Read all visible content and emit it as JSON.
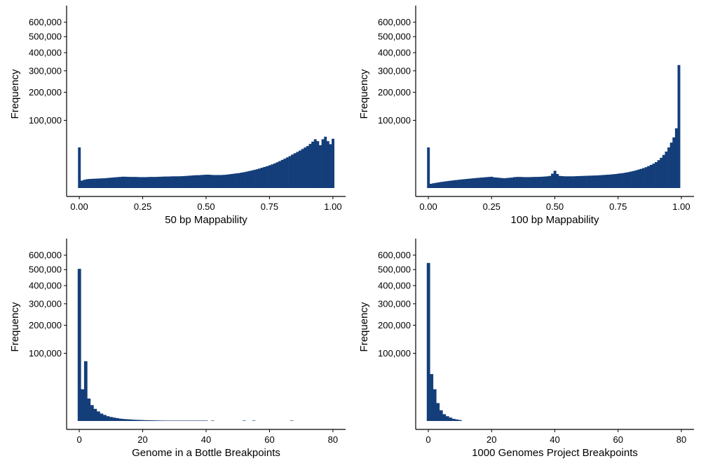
{
  "style": {
    "bar_color": "#143e7a",
    "axis_color": "#000000",
    "background": "#ffffff"
  },
  "chart_data": [
    {
      "type": "bar",
      "title": "",
      "xlabel": "50 bp Mappability",
      "ylabel": "Frequency",
      "y_scale": "sqrt",
      "ylim": [
        0,
        650000
      ],
      "yticks": [
        100000,
        200000,
        300000,
        400000,
        500000,
        600000
      ],
      "ytick_labels": [
        "100,000",
        "200,000",
        "300,000",
        "400,000",
        "500,000",
        "600,000"
      ],
      "xlim": [
        -0.05,
        1.05
      ],
      "xticks": [
        0,
        0.25,
        0.5,
        0.75,
        1
      ],
      "xtick_labels": [
        "0.00",
        "0.25",
        "0.50",
        "0.75",
        "1.00"
      ],
      "bin_start": -0.005,
      "bin_width": 0.01,
      "values": [
        36000,
        1200,
        1500,
        1700,
        1800,
        1850,
        1900,
        1950,
        2000,
        2050,
        2100,
        2200,
        2300,
        2400,
        2500,
        2600,
        2700,
        2800,
        2800,
        2750,
        2700,
        2700,
        2700,
        2650,
        2600,
        2600,
        2600,
        2650,
        2700,
        2700,
        2700,
        2750,
        2800,
        2850,
        2900,
        2900,
        2950,
        3000,
        3000,
        3000,
        3050,
        3100,
        3200,
        3300,
        3400,
        3500,
        3600,
        3600,
        3700,
        3800,
        3900,
        3900,
        3800,
        3700,
        3700,
        3700,
        3700,
        3800,
        3900,
        4100,
        4300,
        4500,
        4700,
        4900,
        5200,
        5500,
        5900,
        6300,
        6700,
        7200,
        7700,
        8300,
        9000,
        9700,
        10400,
        11300,
        12200,
        13200,
        14500,
        15800,
        17300,
        18800,
        20500,
        22300,
        24500,
        26500,
        28500,
        30700,
        33300,
        36000,
        38500,
        42500,
        47000,
        52000,
        48000,
        40000,
        52000,
        57500,
        48000,
        42000,
        53000
      ]
    },
    {
      "type": "bar",
      "title": "",
      "xlabel": "100 bp Mappability",
      "ylabel": "Frequency",
      "y_scale": "sqrt",
      "ylim": [
        0,
        650000
      ],
      "yticks": [
        100000,
        200000,
        300000,
        400000,
        500000,
        600000
      ],
      "ytick_labels": [
        "100,000",
        "200,000",
        "300,000",
        "400,000",
        "500,000",
        "600,000"
      ],
      "xlim": [
        -0.05,
        1.05
      ],
      "xticks": [
        0,
        0.25,
        0.5,
        0.75,
        1
      ],
      "xtick_labels": [
        "0.00",
        "0.25",
        "0.50",
        "0.75",
        "1.00"
      ],
      "bin_start": -0.005,
      "bin_width": 0.01,
      "values": [
        36000,
        400,
        500,
        600,
        700,
        800,
        900,
        1000,
        1100,
        1200,
        1300,
        1400,
        1500,
        1600,
        1700,
        1800,
        1900,
        2000,
        2100,
        2200,
        2300,
        2400,
        2500,
        2600,
        2700,
        2800,
        2500,
        2400,
        2300,
        2200,
        2100,
        2200,
        2300,
        2400,
        2600,
        2700,
        2700,
        2650,
        2600,
        2600,
        2600,
        2650,
        2700,
        2700,
        2750,
        2800,
        2900,
        3000,
        3200,
        4500,
        6500,
        4300,
        3200,
        3100,
        3000,
        3000,
        3000,
        3000,
        3050,
        3100,
        3150,
        3200,
        3250,
        3300,
        3350,
        3400,
        3450,
        3500,
        3600,
        3700,
        3800,
        3900,
        4000,
        4150,
        4300,
        4500,
        4700,
        4900,
        5200,
        5500,
        5900,
        6300,
        6800,
        7400,
        8000,
        8700,
        9500,
        10500,
        11700,
        13000,
        14700,
        17000,
        20000,
        24000,
        29000,
        36000,
        45000,
        56000,
        78000,
        330000
      ]
    },
    {
      "type": "bar",
      "title": "",
      "xlabel": "Genome in a Bottle Breakpoints",
      "ylabel": "Frequency",
      "y_scale": "sqrt",
      "ylim": [
        0,
        650000
      ],
      "yticks": [
        100000,
        200000,
        300000,
        400000,
        500000,
        600000
      ],
      "ytick_labels": [
        "100,000",
        "200,000",
        "300,000",
        "400,000",
        "500,000",
        "600,000"
      ],
      "xlim": [
        -4,
        84
      ],
      "xticks": [
        0,
        20,
        40,
        60,
        80
      ],
      "xtick_labels": [
        "0",
        "20",
        "40",
        "60",
        "80"
      ],
      "bin_start": -0.5,
      "bin_width": 1,
      "values": [
        505000,
        22000,
        78000,
        11000,
        5500,
        3200,
        2000,
        1200,
        800,
        500,
        350,
        250,
        180,
        120,
        90,
        70,
        55,
        40,
        30,
        25,
        20,
        15,
        12,
        10,
        8,
        6,
        5,
        4,
        3,
        3,
        2,
        2,
        2,
        1,
        1,
        1,
        1,
        1,
        1,
        1,
        1,
        0,
        1,
        0,
        0,
        0,
        0,
        0,
        0,
        0,
        0,
        0,
        1,
        0,
        0,
        1,
        0,
        0,
        0,
        0,
        0,
        0,
        0,
        0,
        0,
        0,
        0,
        1
      ]
    },
    {
      "type": "bar",
      "title": "",
      "xlabel": "1000 Genomes Project Breakpoints",
      "ylabel": "Frequency",
      "y_scale": "sqrt",
      "ylim": [
        0,
        650000
      ],
      "yticks": [
        100000,
        200000,
        300000,
        400000,
        500000,
        600000
      ],
      "ytick_labels": [
        "100,000",
        "200,000",
        "300,000",
        "400,000",
        "500,000",
        "600,000"
      ],
      "xlim": [
        -4,
        84
      ],
      "xticks": [
        0,
        20,
        40,
        60,
        80
      ],
      "xtick_labels": [
        "0",
        "20",
        "40",
        "60",
        "80"
      ],
      "bin_start": -0.5,
      "bin_width": 1,
      "values": [
        545000,
        48000,
        22000,
        7000,
        2500,
        1000,
        500,
        250,
        100,
        50,
        20
      ]
    }
  ]
}
